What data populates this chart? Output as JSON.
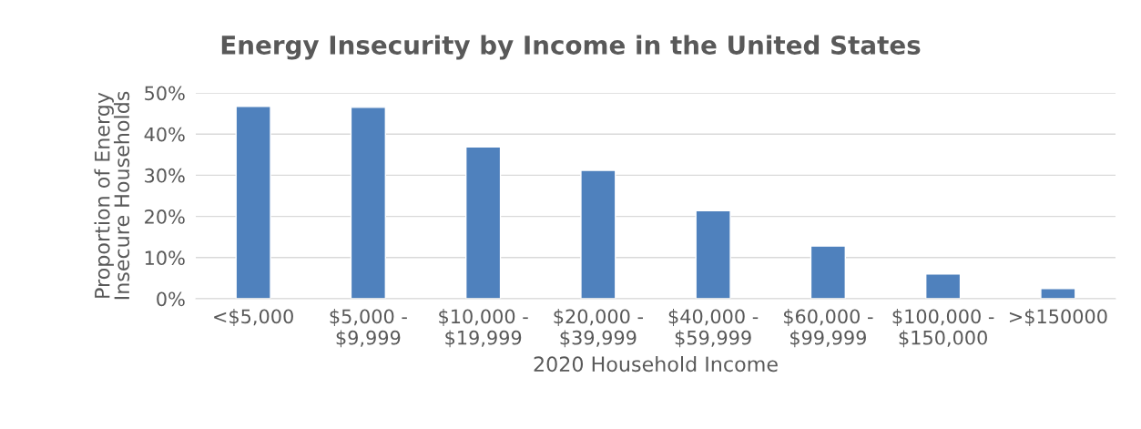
{
  "chart_data": {
    "type": "bar",
    "title": "Energy Insecurity by Income in the United States",
    "xlabel": "2020 Household Income",
    "ylabel": "Proportion of Energy\nInsecure Households",
    "categories": [
      "<$5,000",
      "$5,000 -\n$9,999",
      "$10,000 -\n$19,999",
      "$20,000 -\n$39,999",
      "$40,000 -\n$59,999",
      "$60,000 -\n$99,999",
      "$100,000 -\n$150,000",
      ">$150000"
    ],
    "values": [
      46.7,
      46.5,
      36.9,
      31.2,
      21.4,
      12.8,
      6.0,
      2.5
    ],
    "color": "#4f81bd",
    "ylim": [
      0,
      50
    ],
    "yticks": [
      {
        "value": 0,
        "label": "0%"
      },
      {
        "value": 10,
        "label": "10%"
      },
      {
        "value": 20,
        "label": "20%"
      },
      {
        "value": 30,
        "label": "30%"
      },
      {
        "value": 40,
        "label": "40%"
      },
      {
        "value": 50,
        "label": "50%"
      }
    ],
    "grid": "y",
    "legend": false
  }
}
